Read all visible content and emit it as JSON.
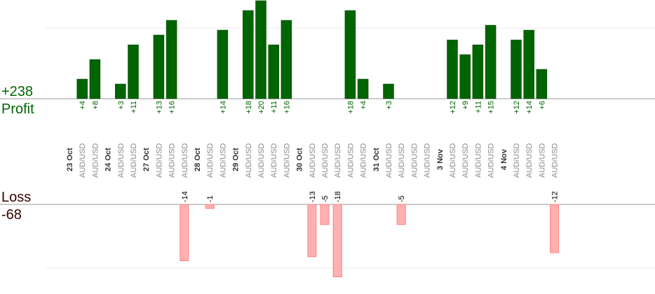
{
  "summary": {
    "profit_value": "+238",
    "profit_label": "Profit",
    "loss_label": "Loss",
    "loss_value": "-68",
    "profit_color": "#006400",
    "loss_color": "#3a0000"
  },
  "chart_data": {
    "type": "bar",
    "title": "",
    "xlabel": "",
    "ylabel": "",
    "grid": true,
    "colors": {
      "profit_bar": "#006400",
      "profit_bar_border": "#004400",
      "loss_bar": "#ffb0b0",
      "loss_bar_border": "#ff8080",
      "pair_label": "#888888",
      "date_label": "#333333",
      "profit_value_label": "#006400",
      "loss_value_label": "#000000",
      "axis": "#999999",
      "grid": "#eeeeee"
    },
    "ylim_profit": [
      0,
      20
    ],
    "ylim_loss": [
      -20,
      0
    ],
    "dates": [
      {
        "label": "23 Oct",
        "after_index": -1
      },
      {
        "label": "24 Oct",
        "after_index": 1
      },
      {
        "label": "27 Oct",
        "after_index": 3
      },
      {
        "label": "28 Oct",
        "after_index": 6
      },
      {
        "label": "29 Oct",
        "after_index": 8
      },
      {
        "label": "30 Oct",
        "after_index": 12
      },
      {
        "label": "31 Oct",
        "after_index": 17
      },
      {
        "label": "3 Nov",
        "after_index": 21
      },
      {
        "label": "4 Nov",
        "after_index": 25
      }
    ],
    "categories": [
      "AUD/USD",
      "AUD/USD",
      "AUD/USD",
      "AUD/USD",
      "AUD/USD",
      "AUD/USD",
      "AUD/USD",
      "AUD/USD",
      "AUD/USD",
      "AUD/USD",
      "AUD/USD",
      "AUD/USD",
      "AUD/USD",
      "AUD/USD",
      "AUD/USD",
      "AUD/USD",
      "AUD/USD",
      "AUD/USD",
      "AUD/USD",
      "AUD/USD",
      "AUD/USD",
      "AUD/USD",
      "AUD/USD",
      "AUD/USD",
      "AUD/USD",
      "AUD/USD",
      "AUD/USD",
      "AUD/USD",
      "AUD/USD",
      "AUD/USD"
    ],
    "values": [
      4,
      8,
      3,
      11,
      13,
      16,
      -14,
      -1,
      14,
      18,
      20,
      11,
      16,
      -13,
      -5,
      -18,
      18,
      4,
      3,
      -5,
      null,
      null,
      12,
      9,
      11,
      15,
      12,
      14,
      6,
      -12
    ],
    "value_labels": [
      "+4",
      "+8",
      "+3",
      "+11",
      "+13",
      "+16",
      "-14",
      "-1",
      "+14",
      "+18",
      "+20",
      "+11",
      "+16",
      "-13",
      "-5",
      "-18",
      "+18",
      "+4",
      "+3",
      "-5",
      "",
      "",
      "+12",
      "+9",
      "+11",
      "+15",
      "+12",
      "+14",
      "+6",
      "-12"
    ]
  }
}
